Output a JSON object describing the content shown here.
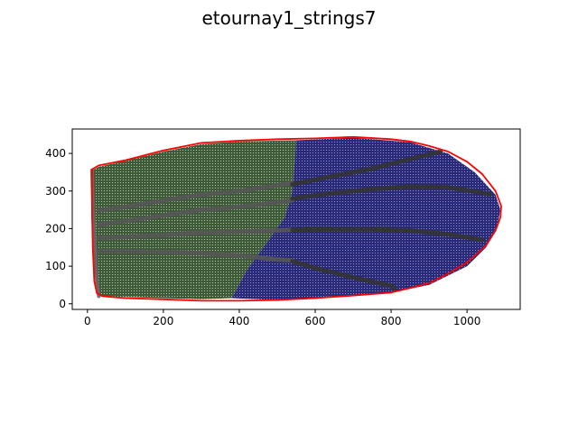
{
  "chart_data": {
    "type": "scatter",
    "title": "etournay1_strings7",
    "xlabel": "",
    "ylabel": "",
    "xlim": [
      -40,
      1140
    ],
    "ylim": [
      -15,
      465
    ],
    "x_ticks": [
      0,
      200,
      400,
      600,
      800,
      1000
    ],
    "y_ticks": [
      0,
      100,
      200,
      300,
      400
    ],
    "grid": false,
    "regions": [
      {
        "name": "green-region",
        "fill": "#3f5a38",
        "dot_color": "#c8e0c0",
        "polygon": [
          [
            12,
            355
          ],
          [
            30,
            365
          ],
          [
            100,
            380
          ],
          [
            200,
            405
          ],
          [
            300,
            425
          ],
          [
            400,
            432
          ],
          [
            550,
            435
          ],
          [
            540,
            300
          ],
          [
            520,
            230
          ],
          [
            470,
            160
          ],
          [
            420,
            90
          ],
          [
            380,
            15
          ],
          [
            300,
            12
          ],
          [
            200,
            15
          ],
          [
            100,
            18
          ],
          [
            30,
            20
          ],
          [
            15,
            100
          ],
          [
            10,
            250
          ]
        ]
      },
      {
        "name": "blue-region",
        "fill": "#2a2a7a",
        "dot_color": "#a8a8d8",
        "polygon": [
          [
            550,
            435
          ],
          [
            700,
            442
          ],
          [
            850,
            430
          ],
          [
            950,
            400
          ],
          [
            1020,
            350
          ],
          [
            1075,
            290
          ],
          [
            1088,
            250
          ],
          [
            1080,
            210
          ],
          [
            1050,
            150
          ],
          [
            1000,
            100
          ],
          [
            900,
            50
          ],
          [
            800,
            30
          ],
          [
            700,
            20
          ],
          [
            600,
            15
          ],
          [
            500,
            10
          ],
          [
            380,
            15
          ],
          [
            420,
            90
          ],
          [
            470,
            160
          ],
          [
            520,
            230
          ],
          [
            540,
            300
          ]
        ]
      }
    ],
    "strings": [
      {
        "name": "string-1",
        "color": "#555555",
        "points": [
          [
            30,
            248
          ],
          [
            100,
            258
          ],
          [
            200,
            275
          ],
          [
            300,
            290
          ],
          [
            400,
            300
          ],
          [
            500,
            315
          ],
          [
            540,
            322
          ]
        ]
      },
      {
        "name": "string-2",
        "color": "#555555",
        "points": [
          [
            30,
            210
          ],
          [
            100,
            220
          ],
          [
            200,
            235
          ],
          [
            300,
            250
          ],
          [
            400,
            258
          ],
          [
            500,
            270
          ],
          [
            540,
            275
          ]
        ]
      },
      {
        "name": "string-3",
        "color": "#555555",
        "points": [
          [
            30,
            175
          ],
          [
            100,
            178
          ],
          [
            200,
            183
          ],
          [
            300,
            190
          ],
          [
            400,
            192
          ],
          [
            500,
            195
          ],
          [
            540,
            197
          ]
        ]
      },
      {
        "name": "string-4",
        "color": "#555555",
        "points": [
          [
            30,
            140
          ],
          [
            100,
            140
          ],
          [
            200,
            138
          ],
          [
            300,
            135
          ],
          [
            400,
            128
          ],
          [
            500,
            118
          ],
          [
            540,
            115
          ]
        ]
      },
      {
        "name": "string-5",
        "color": "#333333",
        "points": [
          [
            540,
            318
          ],
          [
            650,
            340
          ],
          [
            750,
            360
          ],
          [
            850,
            385
          ],
          [
            930,
            405
          ]
        ]
      },
      {
        "name": "string-6",
        "color": "#333333",
        "points": [
          [
            540,
            280
          ],
          [
            650,
            295
          ],
          [
            750,
            305
          ],
          [
            850,
            312
          ],
          [
            950,
            310
          ],
          [
            1060,
            292
          ]
        ]
      },
      {
        "name": "string-7",
        "color": "#333333",
        "points": [
          [
            540,
            197
          ],
          [
            650,
            198
          ],
          [
            750,
            198
          ],
          [
            850,
            195
          ],
          [
            950,
            185
          ],
          [
            1040,
            170
          ]
        ]
      },
      {
        "name": "string-8",
        "color": "#333333",
        "points": [
          [
            540,
            113
          ],
          [
            600,
            95
          ],
          [
            700,
            70
          ],
          [
            800,
            48
          ],
          [
            810,
            40
          ]
        ]
      },
      {
        "name": "left-edge-string",
        "color": "#666666",
        "points": [
          [
            12,
            355
          ],
          [
            15,
            250
          ],
          [
            20,
            150
          ],
          [
            25,
            60
          ],
          [
            30,
            20
          ]
        ]
      }
    ],
    "outline": {
      "name": "wing-outline",
      "color": "#ff0000",
      "points": [
        [
          12,
          358
        ],
        [
          30,
          368
        ],
        [
          100,
          382
        ],
        [
          200,
          408
        ],
        [
          300,
          428
        ],
        [
          400,
          434
        ],
        [
          500,
          438
        ],
        [
          600,
          440
        ],
        [
          700,
          444
        ],
        [
          800,
          438
        ],
        [
          850,
          432
        ],
        [
          900,
          420
        ],
        [
          950,
          405
        ],
        [
          1000,
          378
        ],
        [
          1040,
          345
        ],
        [
          1075,
          300
        ],
        [
          1090,
          260
        ],
        [
          1088,
          230
        ],
        [
          1075,
          195
        ],
        [
          1050,
          155
        ],
        [
          1000,
          110
        ],
        [
          950,
          80
        ],
        [
          900,
          55
        ],
        [
          850,
          42
        ],
        [
          800,
          30
        ],
        [
          700,
          22
        ],
        [
          600,
          15
        ],
        [
          500,
          10
        ],
        [
          400,
          8
        ],
        [
          300,
          8
        ],
        [
          200,
          12
        ],
        [
          100,
          15
        ],
        [
          40,
          20
        ],
        [
          25,
          28
        ],
        [
          18,
          60
        ],
        [
          14,
          150
        ],
        [
          12,
          250
        ],
        [
          12,
          358
        ]
      ]
    }
  }
}
